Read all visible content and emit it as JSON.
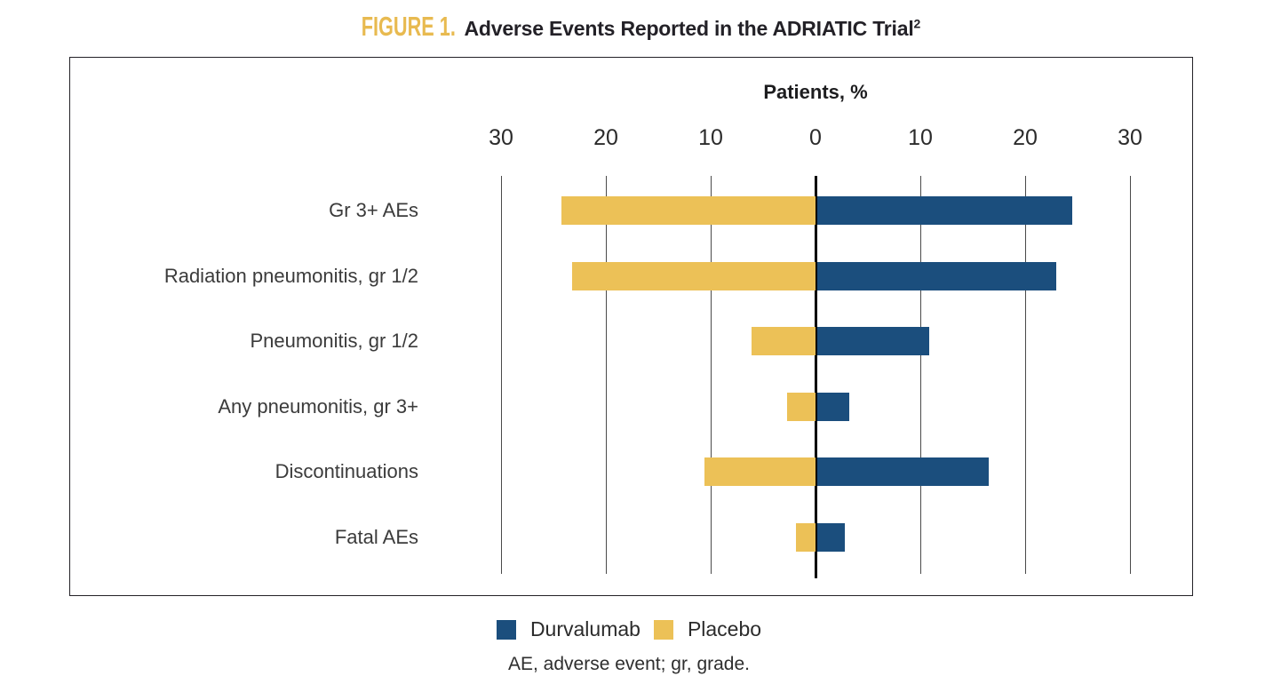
{
  "figure": {
    "label": "FIGURE 1.",
    "title": "Adverse Events Reported in the ADRIATIC Trial",
    "title_superscript": "2",
    "footnote": "AE, adverse event; gr, grade."
  },
  "colors": {
    "durvalumab": "#1B4E7D",
    "placebo": "#ECC157",
    "figure_label_gold": "#E8BA50",
    "zero_axis": "#000000",
    "gridline": "#4A4A4A"
  },
  "chart_data": {
    "type": "bar",
    "subtype": "diverging-horizontal",
    "title": "Adverse Events Reported in the ADRIATIC Trial",
    "axis_title": "Patients, %",
    "axis_tick_labels": [
      "30",
      "20",
      "10",
      "0",
      "10",
      "20",
      "30"
    ],
    "axis_tick_values": [
      -30,
      -20,
      -10,
      0,
      10,
      20,
      30
    ],
    "xlim": [
      -30,
      30
    ],
    "grid": true,
    "legend_position": "bottom",
    "categories": [
      "Gr 3+ AEs",
      "Radiation pneumonitis, gr 1/2",
      "Pneumonitis, gr 1/2",
      "Any pneumonitis, gr 3+",
      "Discontinuations",
      "Fatal AEs"
    ],
    "series": [
      {
        "name": "Durvalumab",
        "direction": "right",
        "color": "#1B4E7D",
        "values": [
          24.4,
          22.8,
          10.7,
          3.1,
          16.4,
          2.7
        ]
      },
      {
        "name": "Placebo",
        "direction": "left",
        "color": "#ECC157",
        "values": [
          24.2,
          23.2,
          6.1,
          2.7,
          10.6,
          1.9
        ]
      }
    ]
  }
}
